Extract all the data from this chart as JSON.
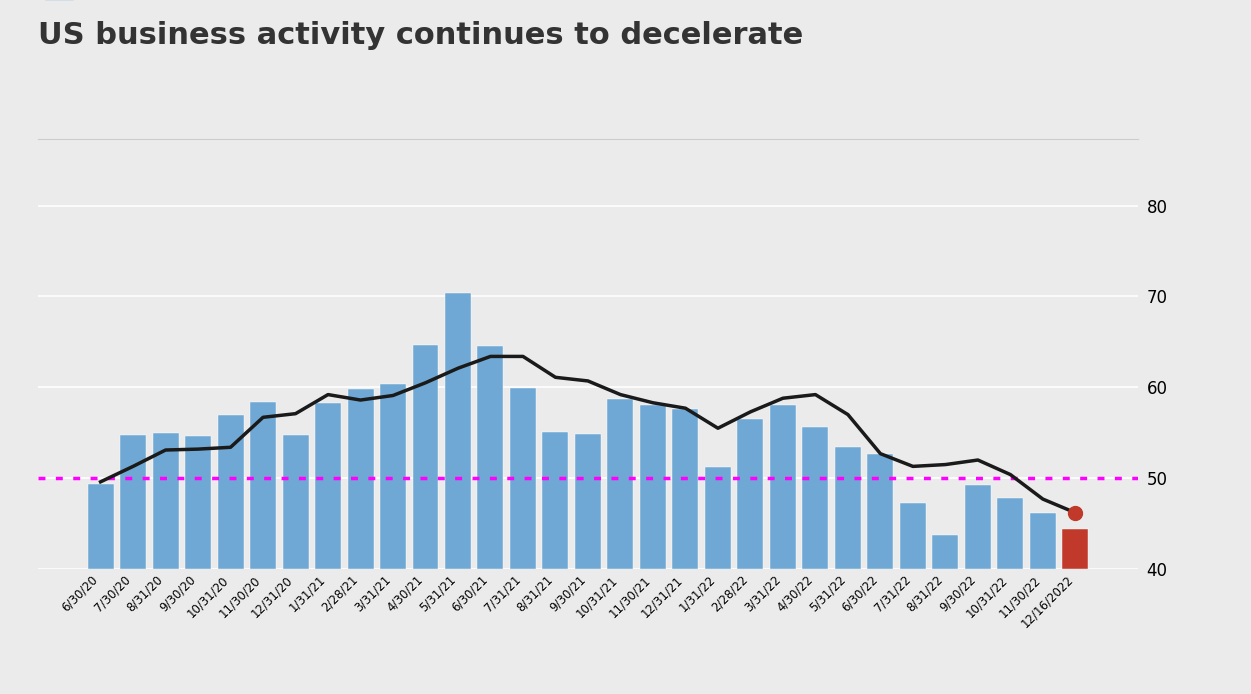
{
  "title": "US business activity continues to decelerate",
  "title_fontsize": 22,
  "background_color": "#ebebeb",
  "expansion_line": 50,
  "ylim": [
    40,
    82
  ],
  "yticks": [
    40,
    50,
    60,
    70,
    80
  ],
  "labels": [
    "6/30/20",
    "7/30/20",
    "8/31/20",
    "9/30/20",
    "10/31/20",
    "11/30/20",
    "12/31/20",
    "1/31/21",
    "2/28/21",
    "3/31/21",
    "4/30/21",
    "5/31/21",
    "6/30/21",
    "7/31/21",
    "8/31/21",
    "9/30/21",
    "10/31/21",
    "11/30/21",
    "12/31/21",
    "1/31/22",
    "2/28/22",
    "3/31/22",
    "4/30/22",
    "5/31/22",
    "6/30/22",
    "7/31/22",
    "8/31/22",
    "9/30/22",
    "10/31/22",
    "11/30/22",
    "12/16/2022"
  ],
  "services_pmi": [
    49.4,
    54.7,
    55.0,
    54.6,
    56.9,
    58.4,
    54.8,
    58.3,
    59.8,
    60.4,
    64.7,
    70.4,
    64.6,
    59.9,
    55.1,
    54.9,
    58.7,
    58.0,
    57.6,
    51.2,
    56.5,
    58.0,
    55.6,
    53.4,
    52.7,
    47.3,
    43.7,
    49.3,
    47.8,
    46.2,
    44.4
  ],
  "manufacturing_pmi": [
    49.6,
    51.3,
    53.1,
    53.2,
    53.4,
    56.7,
    57.1,
    59.2,
    58.6,
    59.1,
    60.5,
    62.1,
    63.4,
    63.4,
    61.1,
    60.7,
    59.2,
    58.3,
    57.7,
    55.5,
    57.3,
    58.8,
    59.2,
    57.0,
    52.7,
    51.3,
    51.5,
    52.0,
    50.4,
    47.7,
    46.2
  ],
  "bar_color_normal": "#6fa8d4",
  "bar_color_last": "#c0392b",
  "line_color": "#1a1a1a",
  "expansion_color": "#ff00ff",
  "grid_color": "#ffffff"
}
